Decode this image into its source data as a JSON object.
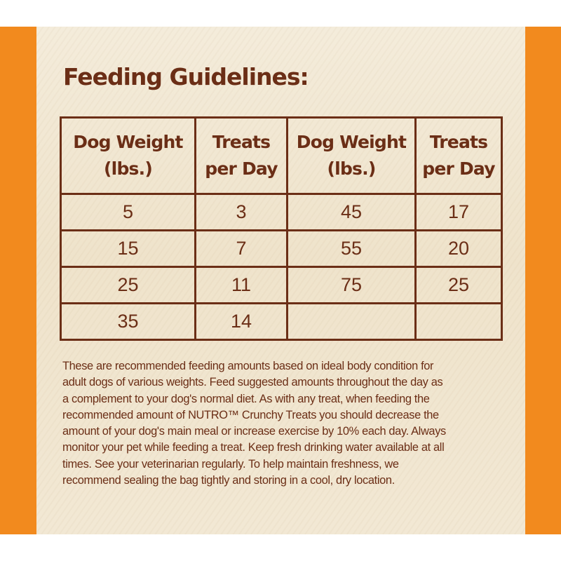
{
  "colors": {
    "accent_orange": "#f28a1e",
    "brown_text": "#6b2e16",
    "panel_background": "#f1e6cf"
  },
  "title": "Feeding Guidelines:",
  "table": {
    "headers": [
      [
        "Dog Weight",
        "(lbs.)"
      ],
      [
        "Treats",
        "per Day"
      ],
      [
        "Dog Weight",
        "(lbs.)"
      ],
      [
        "Treats",
        "per Day"
      ]
    ],
    "rows": [
      [
        "5",
        "3",
        "45",
        "17"
      ],
      [
        "15",
        "7",
        "55",
        "20"
      ],
      [
        "25",
        "11",
        "75",
        "25"
      ],
      [
        "35",
        "14",
        "",
        ""
      ]
    ]
  },
  "paragraph_lines": [
    "These are recommended feeding amounts based on ideal body condition for",
    "adult dogs of various weights. Feed suggested amounts throughout the day as",
    "a complement to your dog's normal diet. As with any treat, when feeding the",
    "recommended amount of NUTRO™ Crunchy Treats you should decrease the",
    "amount of your dog's main meal or increase exercise by 10% each day. Always",
    "monitor your pet while feeding a treat. Keep fresh drinking water available at all",
    "times. See your veterinarian regularly. To help maintain freshness, we",
    "recommend sealing the bag tightly and storing in a cool, dry location."
  ]
}
